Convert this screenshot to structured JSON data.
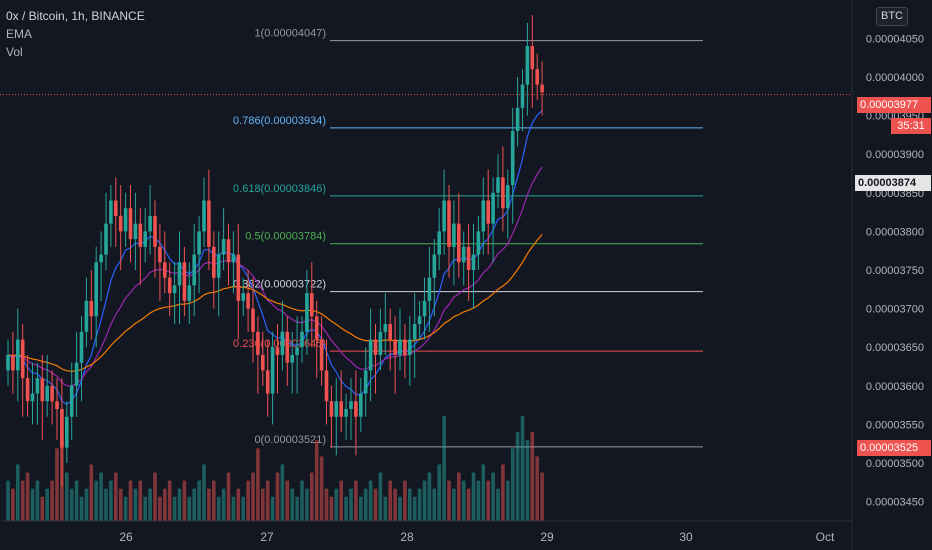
{
  "header": {
    "title": "0x / Bitcoin, 1h, BINANCE",
    "ema_label": "EMA",
    "vol_label": "Vol"
  },
  "currency_badge": "BTC",
  "price_tags": {
    "last": "0.00003977",
    "countdown": "35:31",
    "ema": "0.00003874",
    "low": "0.00003525"
  },
  "colors": {
    "background": "#131722",
    "up": "#26a69a",
    "down": "#ef5350",
    "ema_fast": "#2962ff",
    "ema_mid": "#9c27b0",
    "ema_slow": "#f57c00"
  },
  "chart_data": {
    "type": "candlestick",
    "y_axis": {
      "range": [
        3.425e-05,
        4.075e-05
      ],
      "ticks": [
        "0.00004050",
        "0.00004000",
        "0.00003950",
        "0.00003900",
        "0.00003850",
        "0.00003800",
        "0.00003750",
        "0.00003700",
        "0.00003650",
        "0.00003600",
        "0.00003550",
        "0.00003500",
        "0.00003450"
      ]
    },
    "x_axis": {
      "ticks": [
        "26",
        "27",
        "28",
        "29",
        "30",
        "Oct"
      ]
    },
    "fib_levels": [
      {
        "label": "1(0.00004047)",
        "price": 4.047e-05,
        "color": "#9598a1"
      },
      {
        "label": "0.786(0.00003934)",
        "price": 3.934e-05,
        "color": "#64b5f6"
      },
      {
        "label": "0.618(0.00003846)",
        "price": 3.846e-05,
        "color": "#26a69a"
      },
      {
        "label": "0.5(0.00003784)",
        "price": 3.784e-05,
        "color": "#4caf50"
      },
      {
        "label": "0.382(0.00003722)",
        "price": 3.722e-05,
        "color": "#d1d4dc"
      },
      {
        "label": "0.236(0.00003645)",
        "price": 3.645e-05,
        "color": "#ef5350"
      },
      {
        "label": "0(0.00003521)",
        "price": 3.521e-05,
        "color": "#9598a1"
      }
    ],
    "last_price": 3.977e-05,
    "closes": [
      3.64e-05,
      3.62e-05,
      3.66e-05,
      3.61e-05,
      3.58e-05,
      3.59e-05,
      3.61e-05,
      3.58e-05,
      3.6e-05,
      3.58e-05,
      3.57e-05,
      3.52e-05,
      3.56e-05,
      3.6e-05,
      3.63e-05,
      3.67e-05,
      3.71e-05,
      3.69e-05,
      3.76e-05,
      3.77e-05,
      3.81e-05,
      3.84e-05,
      3.82e-05,
      3.8e-05,
      3.83e-05,
      3.79e-05,
      3.81e-05,
      3.78e-05,
      3.8e-05,
      3.82e-05,
      3.78e-05,
      3.76e-05,
      3.74e-05,
      3.72e-05,
      3.73e-05,
      3.76e-05,
      3.71e-05,
      3.73e-05,
      3.77e-05,
      3.8e-05,
      3.84e-05,
      3.78e-05,
      3.74e-05,
      3.77e-05,
      3.79e-05,
      3.76e-05,
      3.77e-05,
      3.71e-05,
      3.72e-05,
      3.7e-05,
      3.67e-05,
      3.64e-05,
      3.62e-05,
      3.59e-05,
      3.65e-05,
      3.64e-05,
      3.67e-05,
      3.63e-05,
      3.64e-05,
      3.65e-05,
      3.67e-05,
      3.72e-05,
      3.69e-05,
      3.66e-05,
      3.62e-05,
      3.58e-05,
      3.56e-05,
      3.58e-05,
      3.56e-05,
      3.57e-05,
      3.58e-05,
      3.56e-05,
      3.59e-05,
      3.62e-05,
      3.66e-05,
      3.64e-05,
      3.67e-05,
      3.68e-05,
      3.66e-05,
      3.64e-05,
      3.66e-05,
      3.64e-05,
      3.66e-05,
      3.68e-05,
      3.69e-05,
      3.71e-05,
      3.74e-05,
      3.77e-05,
      3.8e-05,
      3.84e-05,
      3.78e-05,
      3.81e-05,
      3.76e-05,
      3.78e-05,
      3.75e-05,
      3.77e-05,
      3.8e-05,
      3.84e-05,
      3.81e-05,
      3.85e-05,
      3.87e-05,
      3.83e-05,
      3.86e-05,
      3.93e-05,
      3.96e-05,
      3.99e-05,
      4.04e-05,
      4.01e-05,
      3.99e-05,
      3.98e-05
    ],
    "volumes": [
      0.5,
      0.4,
      0.7,
      0.5,
      0.6,
      0.4,
      0.5,
      0.3,
      0.4,
      0.5,
      0.9,
      1.0,
      0.6,
      0.4,
      0.5,
      0.3,
      0.4,
      0.7,
      0.5,
      0.6,
      0.4,
      0.5,
      0.6,
      0.4,
      0.3,
      0.5,
      0.4,
      0.5,
      0.3,
      0.4,
      0.6,
      0.3,
      0.4,
      0.5,
      0.3,
      0.4,
      0.5,
      0.3,
      0.4,
      0.5,
      0.7,
      0.4,
      0.5,
      0.3,
      0.4,
      0.6,
      0.3,
      0.4,
      0.3,
      0.5,
      0.6,
      0.9,
      0.4,
      0.5,
      0.3,
      0.6,
      0.7,
      0.5,
      0.4,
      0.3,
      0.5,
      0.4,
      0.6,
      1.0,
      0.8,
      0.4,
      0.3,
      0.4,
      0.5,
      0.3,
      0.4,
      0.5,
      0.3,
      0.4,
      0.5,
      0.4,
      0.6,
      0.3,
      0.5,
      0.4,
      0.3,
      0.5,
      0.4,
      0.3,
      0.4,
      0.5,
      0.6,
      0.4,
      0.7,
      1.3,
      0.5,
      0.4,
      0.6,
      0.5,
      0.4,
      0.6,
      0.5,
      0.7,
      0.5,
      0.6,
      0.4,
      0.7,
      0.5,
      0.9,
      1.1,
      1.3,
      1.0,
      1.1,
      0.8,
      0.6
    ]
  }
}
